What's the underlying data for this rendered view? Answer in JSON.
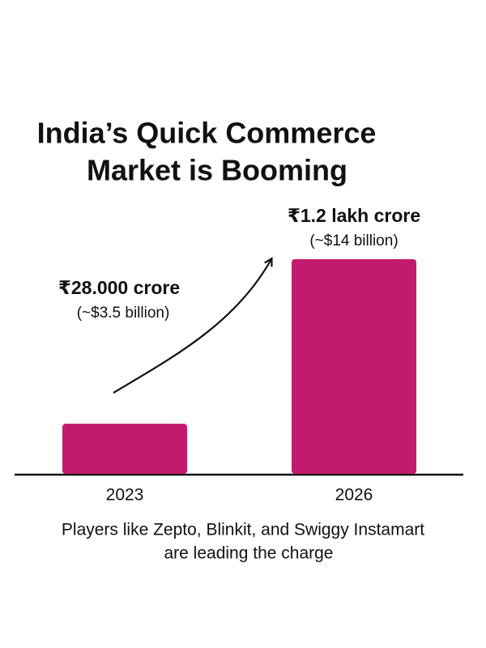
{
  "chart_data": {
    "type": "bar",
    "title": [
      "India’s Quick Commerce",
      "Market is Booming"
    ],
    "categories": [
      "2023",
      "2026"
    ],
    "values": [
      28000,
      120000
    ],
    "value_labels": [
      "₹28.000 crore",
      "₹1.2 lakh crore"
    ],
    "value_sublabels": [
      "(~$3.5 billion)",
      "(~$14 billion)"
    ],
    "color": "#c21a6c",
    "note": [
      "Players like Zepto, Blinkit, and Swiggy Instamart",
      "are leading the charge"
    ]
  }
}
